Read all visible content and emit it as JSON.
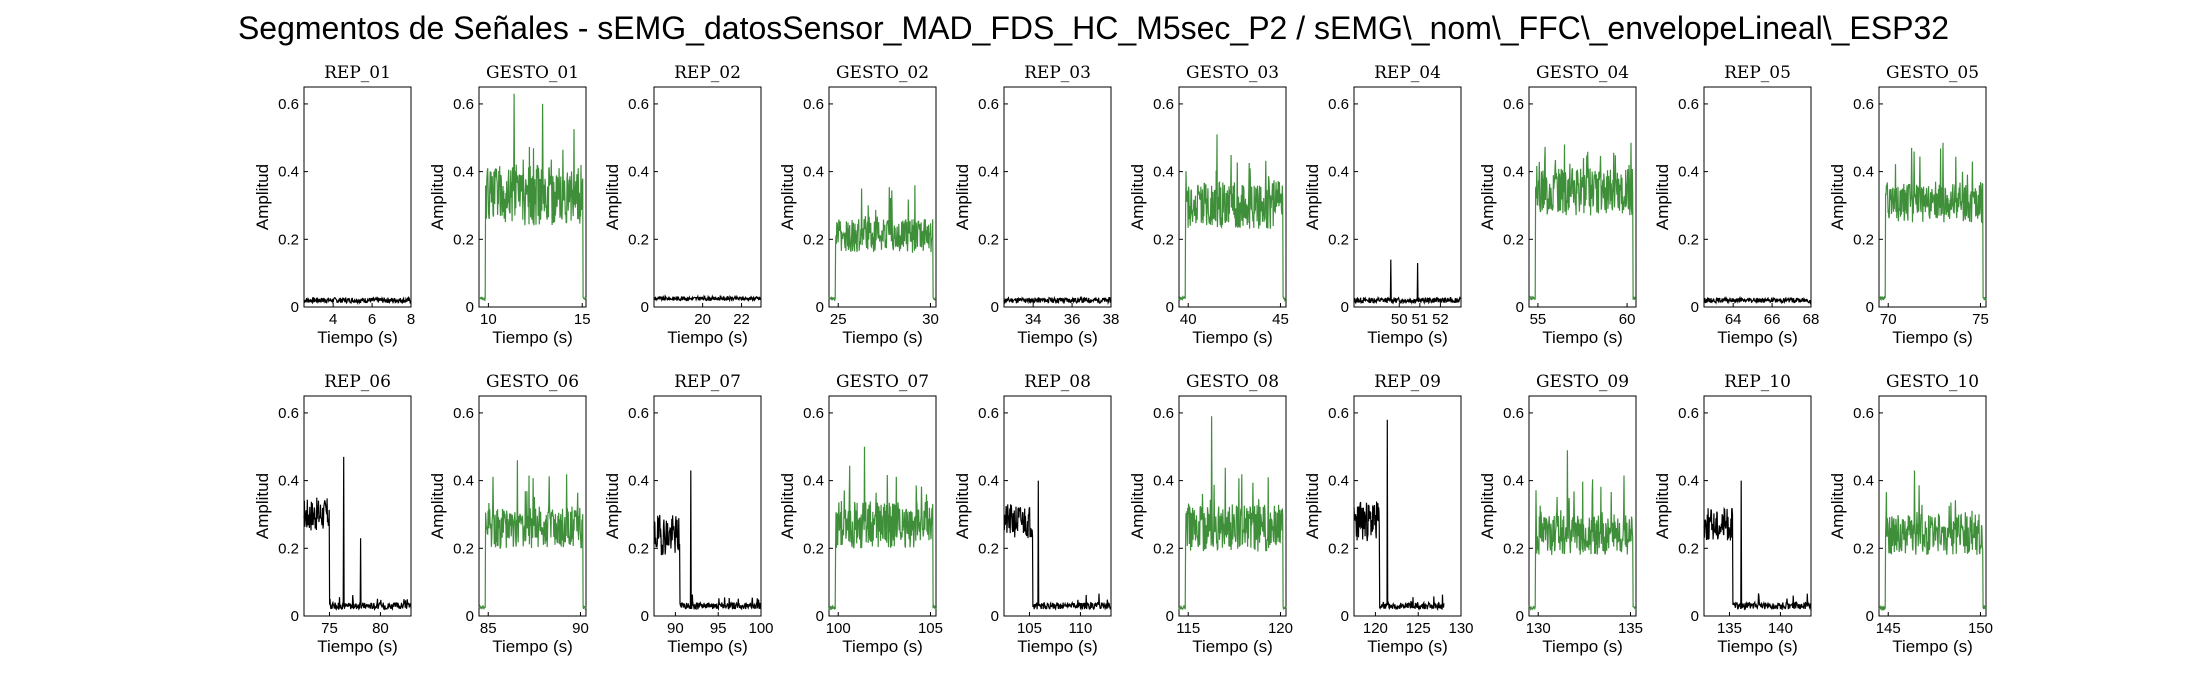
{
  "figure_title": "Segmentos de Señales - sEMG_datosSensor_MAD_FDS_HC_M5sec_P2 / sEMG\\_nom\\_FFC\\_envelopeLineal\\_ESP32",
  "colors": {
    "rep": "#000000",
    "gesto": "#3f8f3a",
    "axis": "#000000"
  },
  "chart_data": [
    {
      "type": "line",
      "title": "REP_01",
      "xlabel": "Tiempo (s)",
      "ylabel": "Amplitud",
      "xlim": [
        2.5,
        8
      ],
      "xticks": [
        4,
        6,
        8
      ],
      "ylim": [
        0,
        0.65
      ],
      "yticks": [
        0,
        0.2,
        0.4,
        0.6
      ],
      "color": "#000000",
      "kind": "rep",
      "x_range": [
        2.5,
        8
      ],
      "level": 0.02,
      "noise": 0.008,
      "peaks": []
    },
    {
      "type": "line",
      "title": "GESTO_01",
      "xlabel": "Tiempo (s)",
      "ylabel": "Amplitud",
      "xlim": [
        9.5,
        15.2
      ],
      "xticks": [
        10,
        15
      ],
      "ylim": [
        0,
        0.65
      ],
      "yticks": [
        0,
        0.2,
        0.4,
        0.6
      ],
      "color": "#3f8f3a",
      "kind": "gesto",
      "x_range": [
        9.5,
        15.2
      ],
      "level": 0.33,
      "noise": 0.09,
      "peaks": [
        0.63,
        0.6
      ]
    },
    {
      "type": "line",
      "title": "REP_02",
      "xlabel": "Tiempo (s)",
      "ylabel": "Amplitud",
      "xlim": [
        17.5,
        23
      ],
      "xticks": [
        20,
        22
      ],
      "ylim": [
        0,
        0.65
      ],
      "yticks": [
        0,
        0.2,
        0.4,
        0.6
      ],
      "color": "#000000",
      "kind": "rep",
      "x_range": [
        17.5,
        23
      ],
      "level": 0.025,
      "noise": 0.006,
      "peaks": []
    },
    {
      "type": "line",
      "title": "GESTO_02",
      "xlabel": "Tiempo (s)",
      "ylabel": "Amplitud",
      "xlim": [
        24.5,
        30.3
      ],
      "xticks": [
        25,
        30
      ],
      "ylim": [
        0,
        0.65
      ],
      "yticks": [
        0,
        0.2,
        0.4,
        0.6
      ],
      "color": "#3f8f3a",
      "kind": "gesto",
      "x_range": [
        24.5,
        30.3
      ],
      "level": 0.21,
      "noise": 0.05,
      "peaks": [
        0.35
      ]
    },
    {
      "type": "line",
      "title": "REP_03",
      "xlabel": "Tiempo (s)",
      "ylabel": "Amplitud",
      "xlim": [
        32.5,
        38
      ],
      "xticks": [
        34,
        36,
        38
      ],
      "ylim": [
        0,
        0.65
      ],
      "yticks": [
        0,
        0.2,
        0.4,
        0.6
      ],
      "color": "#000000",
      "kind": "rep",
      "x_range": [
        32.5,
        38
      ],
      "level": 0.02,
      "noise": 0.008,
      "peaks": []
    },
    {
      "type": "line",
      "title": "GESTO_03",
      "xlabel": "Tiempo (s)",
      "ylabel": "Amplitud",
      "xlim": [
        39.5,
        45.3
      ],
      "xticks": [
        40,
        45
      ],
      "ylim": [
        0,
        0.65
      ],
      "yticks": [
        0,
        0.2,
        0.4,
        0.6
      ],
      "color": "#3f8f3a",
      "kind": "gesto",
      "x_range": [
        39.5,
        45.3
      ],
      "level": 0.3,
      "noise": 0.07,
      "peaks": [
        0.51
      ]
    },
    {
      "type": "line",
      "title": "REP_04",
      "xlabel": "Tiempo (s)",
      "ylabel": "Amplitud",
      "xlim": [
        47.8,
        53
      ],
      "xticks": [
        50,
        51,
        52
      ],
      "ylim": [
        0,
        0.65
      ],
      "yticks": [
        0,
        0.2,
        0.4,
        0.6
      ],
      "color": "#000000",
      "kind": "rep",
      "x_range": [
        47.8,
        53
      ],
      "level": 0.02,
      "noise": 0.008,
      "peaks": [
        0.14,
        0.13
      ]
    },
    {
      "type": "line",
      "title": "GESTO_04",
      "xlabel": "Tiempo (s)",
      "ylabel": "Amplitud",
      "xlim": [
        54.5,
        60.5
      ],
      "xticks": [
        55,
        60
      ],
      "ylim": [
        0,
        0.65
      ],
      "yticks": [
        0,
        0.2,
        0.4,
        0.6
      ],
      "color": "#3f8f3a",
      "kind": "gesto",
      "x_range": [
        54.5,
        60.5
      ],
      "level": 0.34,
      "noise": 0.07,
      "peaks": [
        0.48
      ]
    },
    {
      "type": "line",
      "title": "REP_05",
      "xlabel": "Tiempo (s)",
      "ylabel": "Amplitud",
      "xlim": [
        62.5,
        68
      ],
      "xticks": [
        64,
        66,
        68
      ],
      "ylim": [
        0,
        0.65
      ],
      "yticks": [
        0,
        0.2,
        0.4,
        0.6
      ],
      "color": "#000000",
      "kind": "rep",
      "x_range": [
        62.5,
        68
      ],
      "level": 0.02,
      "noise": 0.007,
      "peaks": []
    },
    {
      "type": "line",
      "title": "GESTO_05",
      "xlabel": "Tiempo (s)",
      "ylabel": "Amplitud",
      "xlim": [
        69.5,
        75.3
      ],
      "xticks": [
        70,
        75
      ],
      "ylim": [
        0,
        0.65
      ],
      "yticks": [
        0,
        0.2,
        0.4,
        0.6
      ],
      "color": "#3f8f3a",
      "kind": "gesto",
      "x_range": [
        69.5,
        75.3
      ],
      "level": 0.31,
      "noise": 0.06,
      "peaks": [
        0.47
      ]
    },
    {
      "type": "line",
      "title": "REP_06",
      "xlabel": "Tiempo (s)",
      "ylabel": "Amplitud",
      "xlim": [
        72.5,
        83
      ],
      "xticks": [
        75,
        80
      ],
      "ylim": [
        0,
        0.65
      ],
      "yticks": [
        0,
        0.2,
        0.4,
        0.6
      ],
      "color": "#000000",
      "kind": "rep_tail",
      "x_range": [
        72.5,
        83
      ],
      "level": 0.3,
      "noise": 0.05,
      "drop_at": 75,
      "peaks": [
        0.47,
        0.23
      ]
    },
    {
      "type": "line",
      "title": "GESTO_06",
      "xlabel": "Tiempo (s)",
      "ylabel": "Amplitud",
      "xlim": [
        84.5,
        90.3
      ],
      "xticks": [
        85,
        90
      ],
      "ylim": [
        0,
        0.65
      ],
      "yticks": [
        0,
        0.2,
        0.4,
        0.6
      ],
      "color": "#3f8f3a",
      "kind": "gesto",
      "x_range": [
        84.5,
        90.3
      ],
      "level": 0.26,
      "noise": 0.06,
      "peaks": [
        0.46
      ]
    },
    {
      "type": "line",
      "title": "REP_07",
      "xlabel": "Tiempo (s)",
      "ylabel": "Amplitud",
      "xlim": [
        87.5,
        100
      ],
      "xticks": [
        90,
        95,
        100
      ],
      "ylim": [
        0,
        0.65
      ],
      "yticks": [
        0,
        0.2,
        0.4,
        0.6
      ],
      "color": "#000000",
      "kind": "rep_tail",
      "x_range": [
        87.5,
        100
      ],
      "level": 0.24,
      "noise": 0.06,
      "drop_at": 90.5,
      "peaks": [
        0.43
      ]
    },
    {
      "type": "line",
      "title": "GESTO_07",
      "xlabel": "Tiempo (s)",
      "ylabel": "Amplitud",
      "xlim": [
        99.5,
        105.3
      ],
      "xticks": [
        100,
        105
      ],
      "ylim": [
        0,
        0.65
      ],
      "yticks": [
        0,
        0.2,
        0.4,
        0.6
      ],
      "color": "#3f8f3a",
      "kind": "gesto",
      "x_range": [
        99.5,
        105.3
      ],
      "level": 0.27,
      "noise": 0.07,
      "peaks": [
        0.5
      ]
    },
    {
      "type": "line",
      "title": "REP_08",
      "xlabel": "Tiempo (s)",
      "ylabel": "Amplitud",
      "xlim": [
        102.5,
        113
      ],
      "xticks": [
        105,
        110
      ],
      "ylim": [
        0,
        0.65
      ],
      "yticks": [
        0,
        0.2,
        0.4,
        0.6
      ],
      "color": "#000000",
      "kind": "rep_tail",
      "x_range": [
        102.5,
        113
      ],
      "level": 0.28,
      "noise": 0.05,
      "drop_at": 105.3,
      "peaks": [
        0.4
      ]
    },
    {
      "type": "line",
      "title": "GESTO_08",
      "xlabel": "Tiempo (s)",
      "ylabel": "Amplitud",
      "xlim": [
        114.5,
        120.3
      ],
      "xticks": [
        115,
        120
      ],
      "ylim": [
        0,
        0.65
      ],
      "yticks": [
        0,
        0.2,
        0.4,
        0.6
      ],
      "color": "#3f8f3a",
      "kind": "gesto",
      "x_range": [
        114.5,
        120.3
      ],
      "level": 0.26,
      "noise": 0.07,
      "peaks": [
        0.59
      ]
    },
    {
      "type": "line",
      "title": "REP_09",
      "xlabel": "Tiempo (s)",
      "ylabel": "Amplitud",
      "xlim": [
        117.5,
        130
      ],
      "xticks": [
        120,
        125,
        130
      ],
      "ylim": [
        0,
        0.65
      ],
      "yticks": [
        0,
        0.2,
        0.4,
        0.6
      ],
      "color": "#000000",
      "kind": "rep_tail",
      "x_range": [
        117.5,
        128
      ],
      "level": 0.28,
      "noise": 0.06,
      "drop_at": 120.5,
      "peaks": [
        0.58
      ]
    },
    {
      "type": "line",
      "title": "GESTO_09",
      "xlabel": "Tiempo (s)",
      "ylabel": "Amplitud",
      "xlim": [
        129.5,
        135.3
      ],
      "xticks": [
        130,
        135
      ],
      "ylim": [
        0,
        0.65
      ],
      "yticks": [
        0,
        0.2,
        0.4,
        0.6
      ],
      "color": "#3f8f3a",
      "kind": "gesto",
      "x_range": [
        129.5,
        135.3
      ],
      "level": 0.24,
      "noise": 0.06,
      "peaks": [
        0.49
      ]
    },
    {
      "type": "line",
      "title": "REP_10",
      "xlabel": "Tiempo (s)",
      "ylabel": "Amplitud",
      "xlim": [
        132.5,
        143
      ],
      "xticks": [
        135,
        140
      ],
      "ylim": [
        0,
        0.65
      ],
      "yticks": [
        0,
        0.2,
        0.4,
        0.6
      ],
      "color": "#000000",
      "kind": "rep_tail",
      "x_range": [
        132.5,
        143
      ],
      "level": 0.27,
      "noise": 0.05,
      "drop_at": 135.3,
      "peaks": [
        0.4
      ]
    },
    {
      "type": "line",
      "title": "GESTO_10",
      "xlabel": "Tiempo (s)",
      "ylabel": "Amplitud",
      "xlim": [
        144.5,
        150.3
      ],
      "xticks": [
        145,
        150
      ],
      "ylim": [
        0,
        0.65
      ],
      "yticks": [
        0,
        0.2,
        0.4,
        0.6
      ],
      "color": "#3f8f3a",
      "kind": "gesto",
      "x_range": [
        144.5,
        150.3
      ],
      "level": 0.24,
      "noise": 0.06,
      "peaks": [
        0.43
      ]
    }
  ]
}
